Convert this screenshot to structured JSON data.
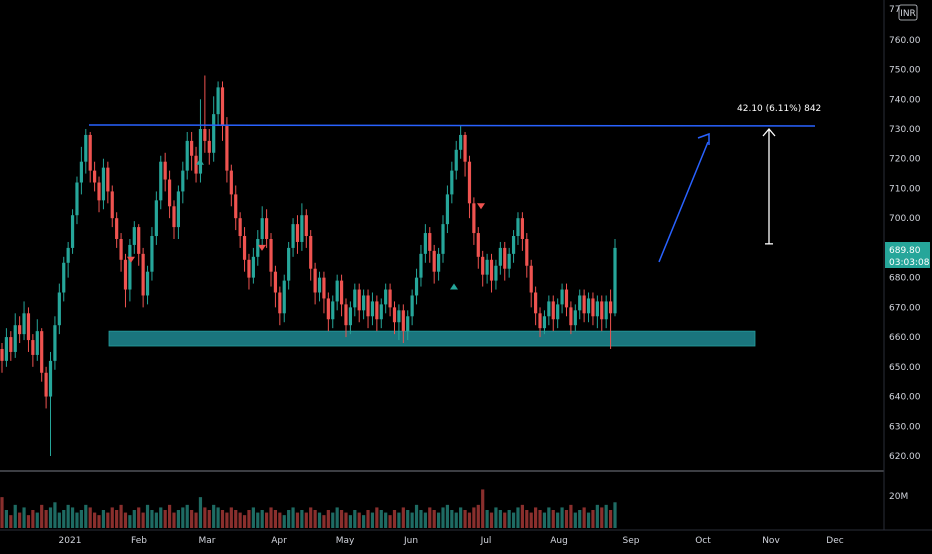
{
  "chart_data": {
    "type": "candlestick",
    "currency_badge": "INR",
    "price_axis_ticks": [
      "77",
      "760.00",
      "750.00",
      "740.00",
      "730.00",
      "720.00",
      "710.00",
      "700.00",
      "690.00",
      "680.00",
      "670.00",
      "660.00",
      "650.00",
      "640.00",
      "630.00",
      "620.00"
    ],
    "ylim": [
      615,
      776
    ],
    "time_axis_labels": [
      "2021",
      "Feb",
      "Mar",
      "Apr",
      "May",
      "Jun",
      "Jul",
      "Aug",
      "Sep",
      "Oct",
      "Nov",
      "Dec"
    ],
    "volume_axis_label": "20M",
    "last_price": "689.80",
    "countdown": "03:03:08",
    "resistance_level": 730,
    "support_zone": [
      657,
      662
    ],
    "measure_annotation": "42.10 (6.11%) 842",
    "measure_range": [
      688,
      730
    ],
    "projection_arrow": [
      690,
      729
    ],
    "signal_markers": [
      {
        "direction": "down",
        "price": 686
      },
      {
        "direction": "up",
        "price": 719
      },
      {
        "direction": "down",
        "price": 690
      },
      {
        "direction": "up",
        "price": 677
      },
      {
        "direction": "down",
        "price": 704
      }
    ],
    "candles": [
      [
        656,
        652,
        658,
        648
      ],
      [
        652,
        660,
        663,
        650
      ],
      [
        660,
        655,
        662,
        652
      ],
      [
        655,
        664,
        668,
        653
      ],
      [
        664,
        661,
        667,
        658
      ],
      [
        661,
        668,
        672,
        659
      ],
      [
        668,
        659,
        670,
        655
      ],
      [
        659,
        654,
        661,
        650
      ],
      [
        654,
        662,
        666,
        652
      ],
      [
        662,
        648,
        663,
        645
      ],
      [
        648,
        640,
        650,
        636
      ],
      [
        640,
        652,
        655,
        620
      ],
      [
        652,
        664,
        667,
        649
      ],
      [
        664,
        675,
        678,
        661
      ],
      [
        675,
        685,
        687,
        672
      ],
      [
        685,
        690,
        692,
        680
      ],
      [
        690,
        701,
        703,
        688
      ],
      [
        701,
        712,
        714,
        698
      ],
      [
        712,
        719,
        724,
        708
      ],
      [
        719,
        728,
        730,
        715
      ],
      [
        728,
        716,
        729,
        712
      ],
      [
        716,
        712,
        719,
        709
      ],
      [
        712,
        706,
        714,
        702
      ],
      [
        706,
        717,
        720,
        703
      ],
      [
        717,
        709,
        719,
        705
      ],
      [
        709,
        700,
        711,
        697
      ],
      [
        700,
        693,
        702,
        690
      ],
      [
        693,
        686,
        695,
        682
      ],
      [
        686,
        676,
        688,
        670
      ],
      [
        676,
        691,
        693,
        672
      ],
      [
        691,
        697,
        699,
        688
      ],
      [
        697,
        688,
        698,
        684
      ],
      [
        688,
        674,
        690,
        670
      ],
      [
        674,
        682,
        684,
        671
      ],
      [
        682,
        694,
        697,
        679
      ],
      [
        694,
        706,
        709,
        691
      ],
      [
        706,
        719,
        721,
        703
      ],
      [
        719,
        713,
        722,
        709
      ],
      [
        713,
        704,
        716,
        700
      ],
      [
        704,
        697,
        706,
        693
      ],
      [
        697,
        709,
        711,
        693
      ],
      [
        709,
        716,
        719,
        705
      ],
      [
        716,
        726,
        729,
        713
      ],
      [
        726,
        721,
        729,
        716
      ],
      [
        721,
        715,
        724,
        712
      ],
      [
        715,
        730,
        740,
        712
      ],
      [
        730,
        726,
        748,
        722
      ],
      [
        726,
        722,
        730,
        718
      ],
      [
        722,
        735,
        741,
        719
      ],
      [
        735,
        744,
        746,
        731
      ],
      [
        744,
        731,
        746,
        726
      ],
      [
        731,
        716,
        734,
        712
      ],
      [
        716,
        708,
        718,
        704
      ],
      [
        708,
        700,
        711,
        696
      ],
      [
        700,
        694,
        702,
        690
      ],
      [
        694,
        686,
        697,
        682
      ],
      [
        686,
        680,
        688,
        676
      ],
      [
        680,
        687,
        690,
        678
      ],
      [
        687,
        693,
        696,
        684
      ],
      [
        693,
        700,
        704,
        690
      ],
      [
        700,
        693,
        703,
        690
      ],
      [
        693,
        682,
        695,
        677
      ],
      [
        682,
        675,
        684,
        670
      ],
      [
        675,
        668,
        677,
        664
      ],
      [
        668,
        679,
        681,
        665
      ],
      [
        679,
        690,
        692,
        676
      ],
      [
        690,
        698,
        700,
        687
      ],
      [
        698,
        692,
        701,
        688
      ],
      [
        692,
        701,
        705,
        689
      ],
      [
        701,
        694,
        703,
        690
      ],
      [
        694,
        683,
        696,
        679
      ],
      [
        683,
        675,
        685,
        671
      ],
      [
        675,
        680,
        682,
        672
      ],
      [
        680,
        673,
        682,
        668
      ],
      [
        673,
        666,
        675,
        662
      ],
      [
        666,
        672,
        674,
        663
      ],
      [
        672,
        679,
        681,
        669
      ],
      [
        679,
        671,
        681,
        667
      ],
      [
        671,
        664,
        673,
        660
      ],
      [
        664,
        670,
        672,
        661
      ],
      [
        670,
        676,
        678,
        667
      ],
      [
        676,
        669,
        678,
        665
      ],
      [
        669,
        674,
        676,
        666
      ],
      [
        674,
        667,
        676,
        663
      ],
      [
        667,
        672,
        675,
        664
      ],
      [
        672,
        666,
        674,
        662
      ],
      [
        666,
        671,
        673,
        663
      ],
      [
        671,
        676,
        678,
        668
      ],
      [
        676,
        670,
        678,
        667
      ],
      [
        670,
        665,
        672,
        661
      ],
      [
        665,
        669,
        671,
        659
      ],
      [
        669,
        662,
        671,
        658
      ],
      [
        662,
        667,
        669,
        659
      ],
      [
        667,
        674,
        676,
        664
      ],
      [
        674,
        680,
        683,
        671
      ],
      [
        680,
        688,
        691,
        677
      ],
      [
        688,
        695,
        698,
        685
      ],
      [
        695,
        689,
        697,
        685
      ],
      [
        689,
        682,
        691,
        678
      ],
      [
        682,
        688,
        690,
        679
      ],
      [
        688,
        698,
        701,
        685
      ],
      [
        698,
        708,
        711,
        695
      ],
      [
        708,
        716,
        719,
        705
      ],
      [
        716,
        723,
        726,
        713
      ],
      [
        723,
        728,
        731,
        720
      ],
      [
        728,
        719,
        729,
        714
      ],
      [
        719,
        705,
        721,
        700
      ],
      [
        705,
        695,
        707,
        691
      ],
      [
        695,
        687,
        697,
        683
      ],
      [
        687,
        681,
        689,
        677
      ],
      [
        681,
        686,
        688,
        678
      ],
      [
        686,
        679,
        688,
        675
      ],
      [
        679,
        684,
        686,
        676
      ],
      [
        684,
        690,
        692,
        681
      ],
      [
        690,
        683,
        692,
        679
      ],
      [
        683,
        688,
        690,
        680
      ],
      [
        688,
        694,
        696,
        685
      ],
      [
        694,
        700,
        702,
        691
      ],
      [
        700,
        693,
        702,
        689
      ],
      [
        693,
        684,
        695,
        680
      ],
      [
        684,
        675,
        686,
        670
      ],
      [
        675,
        668,
        677,
        664
      ],
      [
        668,
        663,
        670,
        660
      ],
      [
        663,
        667,
        669,
        661
      ],
      [
        667,
        672,
        674,
        664
      ],
      [
        672,
        666,
        674,
        662
      ],
      [
        666,
        671,
        673,
        663
      ],
      [
        671,
        676,
        678,
        668
      ],
      [
        676,
        670,
        678,
        667
      ],
      [
        670,
        664,
        672,
        661
      ],
      [
        664,
        669,
        671,
        662
      ],
      [
        669,
        674,
        676,
        666
      ],
      [
        674,
        668,
        676,
        665
      ],
      [
        668,
        673,
        675,
        665
      ],
      [
        673,
        667,
        675,
        664
      ],
      [
        667,
        672,
        674,
        663
      ],
      [
        672,
        666,
        674,
        662
      ],
      [
        666,
        672,
        674,
        663
      ],
      [
        672,
        668,
        676,
        656
      ],
      [
        668,
        690,
        693,
        667
      ]
    ],
    "volumes": [
      12,
      7,
      5,
      9,
      6,
      8,
      5,
      7,
      6,
      9,
      7,
      8,
      10,
      6,
      7,
      9,
      8,
      6,
      7,
      9,
      8,
      6,
      5,
      7,
      6,
      8,
      7,
      9,
      6,
      5,
      7,
      8,
      6,
      9,
      7,
      6,
      8,
      7,
      9,
      6,
      7,
      8,
      9,
      7,
      6,
      12,
      8,
      7,
      9,
      8,
      7,
      6,
      8,
      7,
      6,
      5,
      7,
      8,
      6,
      7,
      6,
      8,
      7,
      6,
      5,
      7,
      8,
      6,
      7,
      6,
      8,
      7,
      6,
      5,
      7,
      6,
      8,
      7,
      6,
      5,
      7,
      6,
      5,
      7,
      6,
      8,
      7,
      6,
      5,
      7,
      6,
      8,
      7,
      6,
      9,
      7,
      6,
      8,
      7,
      6,
      8,
      9,
      7,
      6,
      8,
      7,
      6,
      8,
      9,
      15,
      7,
      6,
      8,
      7,
      6,
      7,
      6,
      8,
      9,
      7,
      6,
      8,
      7,
      6,
      8,
      7,
      6,
      8,
      7,
      9,
      6,
      7,
      8,
      6,
      7,
      9,
      8,
      9,
      7,
      10,
      8
    ]
  }
}
